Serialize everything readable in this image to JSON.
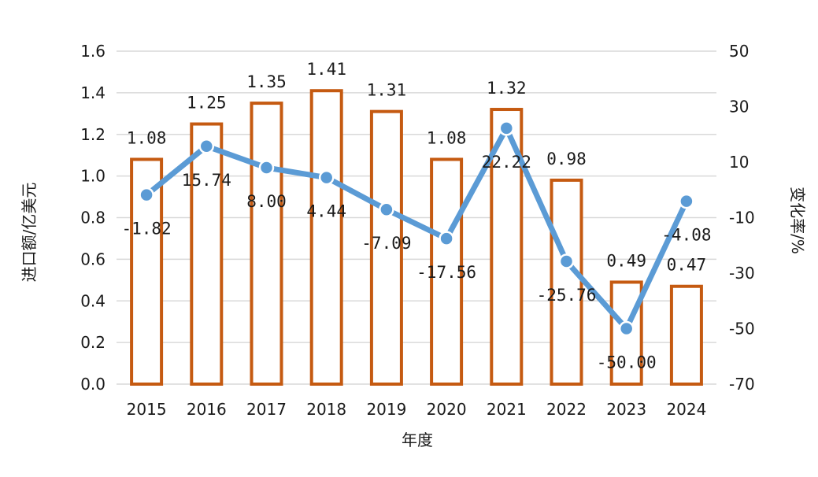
{
  "chart_data": {
    "type": "bar+line",
    "title": "",
    "categories": [
      "2015",
      "2016",
      "2017",
      "2018",
      "2019",
      "2020",
      "2021",
      "2022",
      "2023",
      "2024"
    ],
    "xlabel": "年度",
    "ylabel_left": "进口额/亿美元",
    "ylabel_right": "变化率/%",
    "ylim_left": [
      0,
      1.6
    ],
    "yticks_left": [
      "0.0",
      "0.2",
      "0.4",
      "0.6",
      "0.8",
      "1.0",
      "1.2",
      "1.4",
      "1.6"
    ],
    "ylim_right": [
      -70,
      50
    ],
    "yticks_right": [
      "-70",
      "-50",
      "-30",
      "-10",
      "10",
      "30",
      "50"
    ],
    "grid": true,
    "series": [
      {
        "type": "bar",
        "axis": "left",
        "color": "#C55A11",
        "values": [
          1.08,
          1.25,
          1.35,
          1.41,
          1.31,
          1.08,
          1.32,
          0.98,
          0.49,
          0.47
        ],
        "labels": [
          "1.08",
          "1.25",
          "1.35",
          "1.41",
          "1.31",
          "1.08",
          "1.32",
          "0.98",
          "0.49",
          "0.47"
        ]
      },
      {
        "type": "line",
        "axis": "right",
        "color": "#5B9BD5",
        "values": [
          -1.82,
          15.74,
          8.0,
          4.44,
          -7.09,
          -17.56,
          22.22,
          -25.76,
          -50.0,
          -4.08
        ],
        "labels": [
          "-1.82",
          "15.74",
          "8.00",
          "4.44",
          "-7.09",
          "-17.56",
          "22.22",
          "-25.76",
          "-50.00",
          "-4.08"
        ]
      }
    ]
  }
}
